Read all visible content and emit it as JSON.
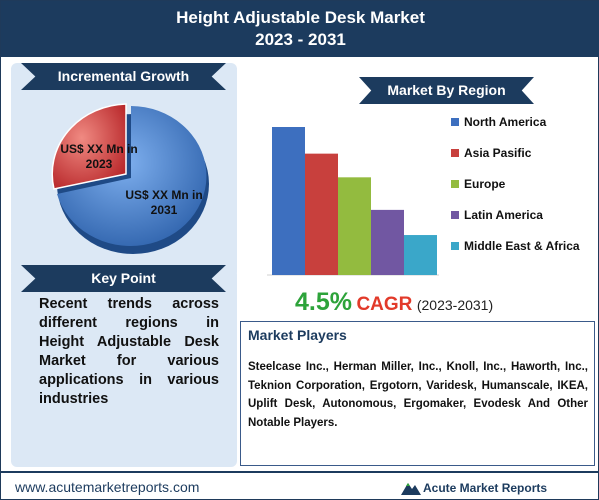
{
  "header": {
    "title_line1": "Height Adjustable Desk Market",
    "title_line2": "2023 - 2031"
  },
  "incremental": {
    "heading": "Incremental Growth",
    "label_2023": "US$ XX Mn in 2023",
    "label_2031": "US$ XX Mn in 2031",
    "color_2023": "#d23a33",
    "color_2031": "#3a78d0"
  },
  "key_point": {
    "heading": "Key Point",
    "text": "Recent trends across different regions in Height Adjustable Desk Market for various applications in various industries"
  },
  "region": {
    "heading": "Market By Region"
  },
  "chart_data": {
    "type": "bar",
    "categories": [
      "North America",
      "Asia Pasific",
      "Europe",
      "Latin America",
      "Middle East & Africa"
    ],
    "values": [
      100,
      82,
      66,
      44,
      27
    ],
    "colors": [
      "#3d6fbf",
      "#c8403d",
      "#93bb3f",
      "#7157a2",
      "#3aa7c9"
    ],
    "legend_position": "right",
    "grid": false
  },
  "cagr": {
    "value": "4.5%",
    "label": "CAGR",
    "years": "(2023-2031)"
  },
  "players": {
    "heading": "Market Players",
    "text": "Steelcase Inc., Herman Miller, Inc., Knoll, Inc., Haworth, Inc., Teknion Corporation, Ergotorn, Varidesk, Humanscale, IKEA, Uplift Desk, Autonomous, Ergomaker, Evodesk And Other Notable Players."
  },
  "footer": {
    "url": "www.acutemarketreports.com",
    "brand": "Acute Market Reports"
  }
}
